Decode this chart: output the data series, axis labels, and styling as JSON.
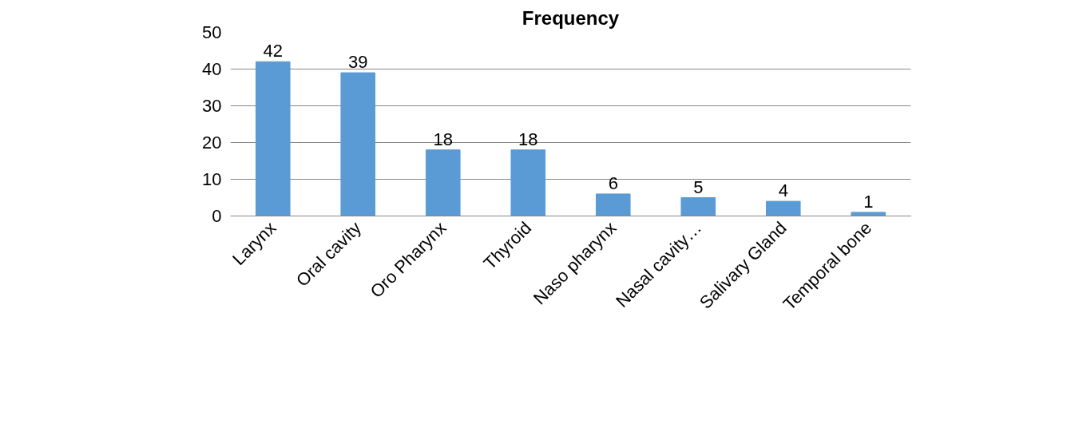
{
  "chart_data": {
    "type": "bar",
    "title": "Frequency",
    "categories": [
      "Larynx",
      "Oral cavity",
      "Oro Pharynx",
      "Thyroid",
      "Naso pharynx",
      "Nasal cavity…",
      "Salivary Gland",
      "Temporal bone"
    ],
    "values": [
      42,
      39,
      18,
      18,
      6,
      5,
      4,
      1
    ],
    "color": "#5b9bd5",
    "ylim": [
      0,
      50
    ],
    "yticks": [
      0,
      10,
      20,
      30,
      40,
      50
    ],
    "grid": "y",
    "data_labels": true
  }
}
